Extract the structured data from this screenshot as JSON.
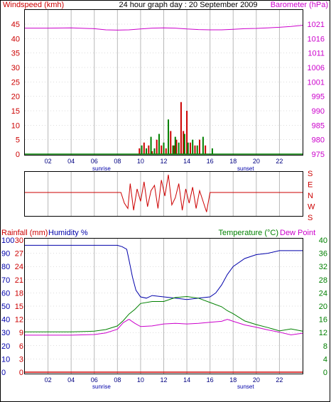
{
  "colors": {
    "wind": "#cc0000",
    "gust": "#008000",
    "barometer": "#cc00cc",
    "rain": "#cc0000",
    "humidity": "#0000aa",
    "temperature": "#008000",
    "dewpoint": "#cc00cc",
    "grid": "#b8b8b8",
    "frame": "#000000"
  },
  "labels": {
    "windspeed": "Windspeed (kmh)",
    "title": "24 hour graph day : 20 September 2009",
    "barometer": "Barometer (hPa)",
    "rainfall": "Rainfall (mm)",
    "humidity": "Humidity %",
    "temperature": "Temperature (°C)",
    "dewpoint": "Dew Point",
    "sunrise": "sunrise",
    "sunset": "sunset"
  },
  "hour_ticks": [
    "02",
    "04",
    "06",
    "08",
    "10",
    "12",
    "14",
    "16",
    "18",
    "20",
    "22"
  ],
  "chart_data": [
    {
      "type": "line",
      "xlim": [
        0,
        24
      ],
      "y_left": {
        "label": "Windspeed (kmh)",
        "range": [
          0,
          45
        ],
        "ticks": [
          "0",
          "5",
          "10",
          "15",
          "20",
          "25",
          "30",
          "35",
          "40",
          "45"
        ]
      },
      "y_right": {
        "label": "Barometer (hPa)",
        "range": [
          975,
          1021
        ],
        "ticks": [
          "975",
          "980",
          "985",
          "990",
          "995",
          "1001",
          "1006",
          "1011",
          "1016",
          "1021"
        ]
      },
      "series": [
        {
          "name": "Barometer (hPa)",
          "axis": "right",
          "x": [
            0,
            2,
            4,
            6,
            7,
            8,
            9,
            10,
            11,
            12,
            13,
            14,
            15,
            16,
            17,
            18,
            19,
            20,
            21,
            22,
            23,
            24
          ],
          "y": [
            1019.6,
            1019.6,
            1019.7,
            1019.4,
            1019.0,
            1018.9,
            1019.0,
            1019.3,
            1019.6,
            1019.7,
            1019.6,
            1019.3,
            1019.1,
            1019.0,
            1019.0,
            1019.2,
            1019.4,
            1019.5,
            1019.7,
            1019.9,
            1020.2,
            1020.6
          ]
        },
        {
          "name": "Windspeed (kmh)",
          "type": "bar",
          "axis": "left",
          "x": [
            9.9,
            10.3,
            10.7,
            11.0,
            11.4,
            11.8,
            12.2,
            12.6,
            12.9,
            13.1,
            13.5,
            13.7,
            14.0,
            14.3,
            14.7,
            15.1,
            15.6
          ],
          "y": [
            2,
            4,
            3,
            1,
            5,
            3,
            2,
            8,
            3,
            5,
            18,
            8,
            15,
            4,
            3,
            5,
            3
          ]
        },
        {
          "name": "Gust",
          "type": "bar",
          "axis": "left",
          "x": [
            10.1,
            10.5,
            10.9,
            11.2,
            11.6,
            12.0,
            12.4,
            12.8,
            13.0,
            13.3,
            13.8,
            14.1,
            14.5,
            14.9,
            15.4,
            16.2
          ],
          "y": [
            3,
            2,
            6,
            2,
            7,
            4,
            12,
            3,
            6,
            4,
            7,
            4,
            5,
            3,
            6,
            2
          ]
        }
      ]
    },
    {
      "type": "scatter",
      "xlim": [
        0,
        24
      ],
      "y_labels": [
        "S",
        "E",
        "N",
        "W",
        "S"
      ],
      "series": [
        {
          "name": "Wind direction",
          "x": [
            0,
            8.3,
            8.6,
            8.9,
            9.1,
            9.4,
            9.7,
            10.0,
            10.3,
            10.6,
            10.9,
            11.2,
            11.5,
            11.8,
            12.1,
            12.4,
            12.7,
            13.0,
            13.3,
            13.6,
            13.9,
            14.2,
            14.5,
            14.8,
            15.1,
            15.4,
            15.7,
            16.0,
            24
          ],
          "y": [
            0,
            0,
            -0.6,
            -0.9,
            0.5,
            -1.0,
            0.2,
            -0.5,
            0.6,
            -0.8,
            0.1,
            0.4,
            -0.9,
            0.7,
            -0.2,
            1.0,
            -0.7,
            -0.3,
            0.5,
            -1.0,
            0.2,
            -0.6,
            0.3,
            -0.9,
            0.1,
            -0.5,
            -1.1,
            0,
            0
          ]
        }
      ]
    },
    {
      "type": "line",
      "xlim": [
        0,
        24
      ],
      "y_left_rain": {
        "label": "Rainfall (mm)",
        "range": [
          0,
          30
        ],
        "ticks": [
          "0",
          "3",
          "6",
          "9",
          "12",
          "15",
          "18",
          "21",
          "24",
          "27",
          "30"
        ]
      },
      "y_left_humidity": {
        "label": "Humidity %",
        "range": [
          0,
          100
        ],
        "ticks": [
          "0",
          "10",
          "20",
          "30",
          "40",
          "50",
          "60",
          "70",
          "80",
          "90",
          "100"
        ]
      },
      "y_right": {
        "label": "Temperature (°C)",
        "range": [
          0,
          40
        ],
        "ticks": [
          "0",
          "4",
          "8",
          "12",
          "16",
          "20",
          "24",
          "28",
          "32",
          "36",
          "40"
        ]
      },
      "series": [
        {
          "name": "Humidity %",
          "axis": "humidity",
          "x": [
            0,
            2,
            4,
            6,
            7,
            8,
            8.4,
            8.8,
            9.0,
            9.3,
            9.6,
            10.0,
            10.5,
            11,
            12,
            13,
            14,
            15,
            16,
            16.5,
            17,
            17.5,
            18,
            19,
            20,
            21,
            22,
            23,
            24
          ],
          "y": [
            96,
            96,
            96,
            96,
            96,
            96,
            95,
            93,
            85,
            72,
            62,
            57,
            56,
            58,
            57,
            56,
            55,
            56,
            57,
            60,
            66,
            74,
            80,
            86,
            89,
            90,
            92,
            92,
            92
          ]
        },
        {
          "name": "Temperature (°C)",
          "axis": "right",
          "x": [
            0,
            2,
            4,
            6,
            7,
            8,
            8.5,
            9,
            9.5,
            10,
            11,
            12,
            13,
            14,
            15,
            16,
            17,
            17.5,
            18,
            19,
            20,
            21,
            22,
            23,
            24
          ],
          "y": [
            12.2,
            12.2,
            12.2,
            12.4,
            12.9,
            14.0,
            15.6,
            17.6,
            19.0,
            20.8,
            21.4,
            21.4,
            22.6,
            22.9,
            22.4,
            21.1,
            19.8,
            18.6,
            17.7,
            15.5,
            14.4,
            13.5,
            12.5,
            13.1,
            12.4
          ]
        },
        {
          "name": "Dew Point",
          "axis": "right",
          "x": [
            0,
            2,
            4,
            6,
            7,
            8,
            8.5,
            9,
            9.5,
            10,
            11,
            12,
            13,
            14,
            15,
            16,
            17,
            17.5,
            18,
            19,
            20,
            21,
            22,
            23,
            24
          ],
          "y": [
            11.2,
            11.2,
            11.2,
            11.4,
            11.9,
            13.0,
            15.0,
            16.0,
            14.8,
            13.8,
            14.0,
            14.6,
            14.8,
            14.6,
            14.8,
            15.1,
            15.4,
            16.0,
            15.4,
            14.3,
            13.6,
            12.8,
            12.1,
            11.3,
            11.8
          ]
        },
        {
          "name": "Rainfall (mm)",
          "axis": "rain",
          "x": [
            0,
            24
          ],
          "y": [
            0,
            0
          ]
        }
      ]
    }
  ]
}
